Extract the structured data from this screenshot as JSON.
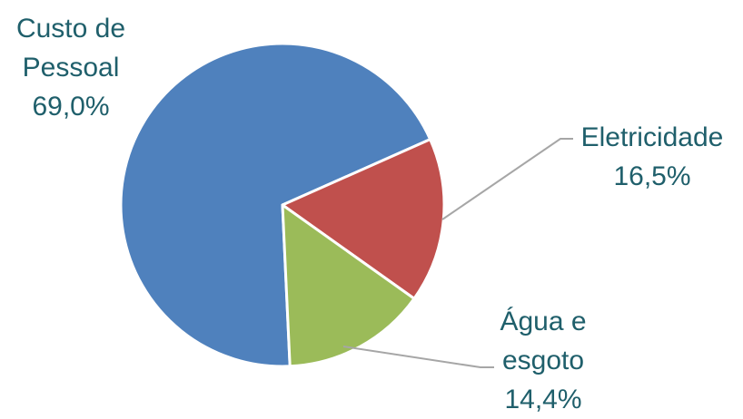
{
  "chart_data": {
    "type": "pie",
    "title": "",
    "categories": [
      "Custo de Pessoal",
      "Eletricidade",
      "Água e esgoto"
    ],
    "values": [
      69.0,
      16.5,
      14.4
    ],
    "colors": [
      "#4f81bd",
      "#c0504d",
      "#9bbb59"
    ],
    "label_color": "#1f5f6b",
    "leader_line_color": "#a6a6a6",
    "labels": [
      {
        "lines": [
          "Custo de",
          "Pessoal"
        ],
        "value_text": "69,0%"
      },
      {
        "lines": [
          "Eletricidade"
        ],
        "value_text": "16,5%"
      },
      {
        "lines": [
          "Água e",
          "esgoto"
        ],
        "value_text": "14,4%"
      }
    ],
    "legend": "none",
    "start_angle": "12 o'clock",
    "direction": "clockwise"
  }
}
